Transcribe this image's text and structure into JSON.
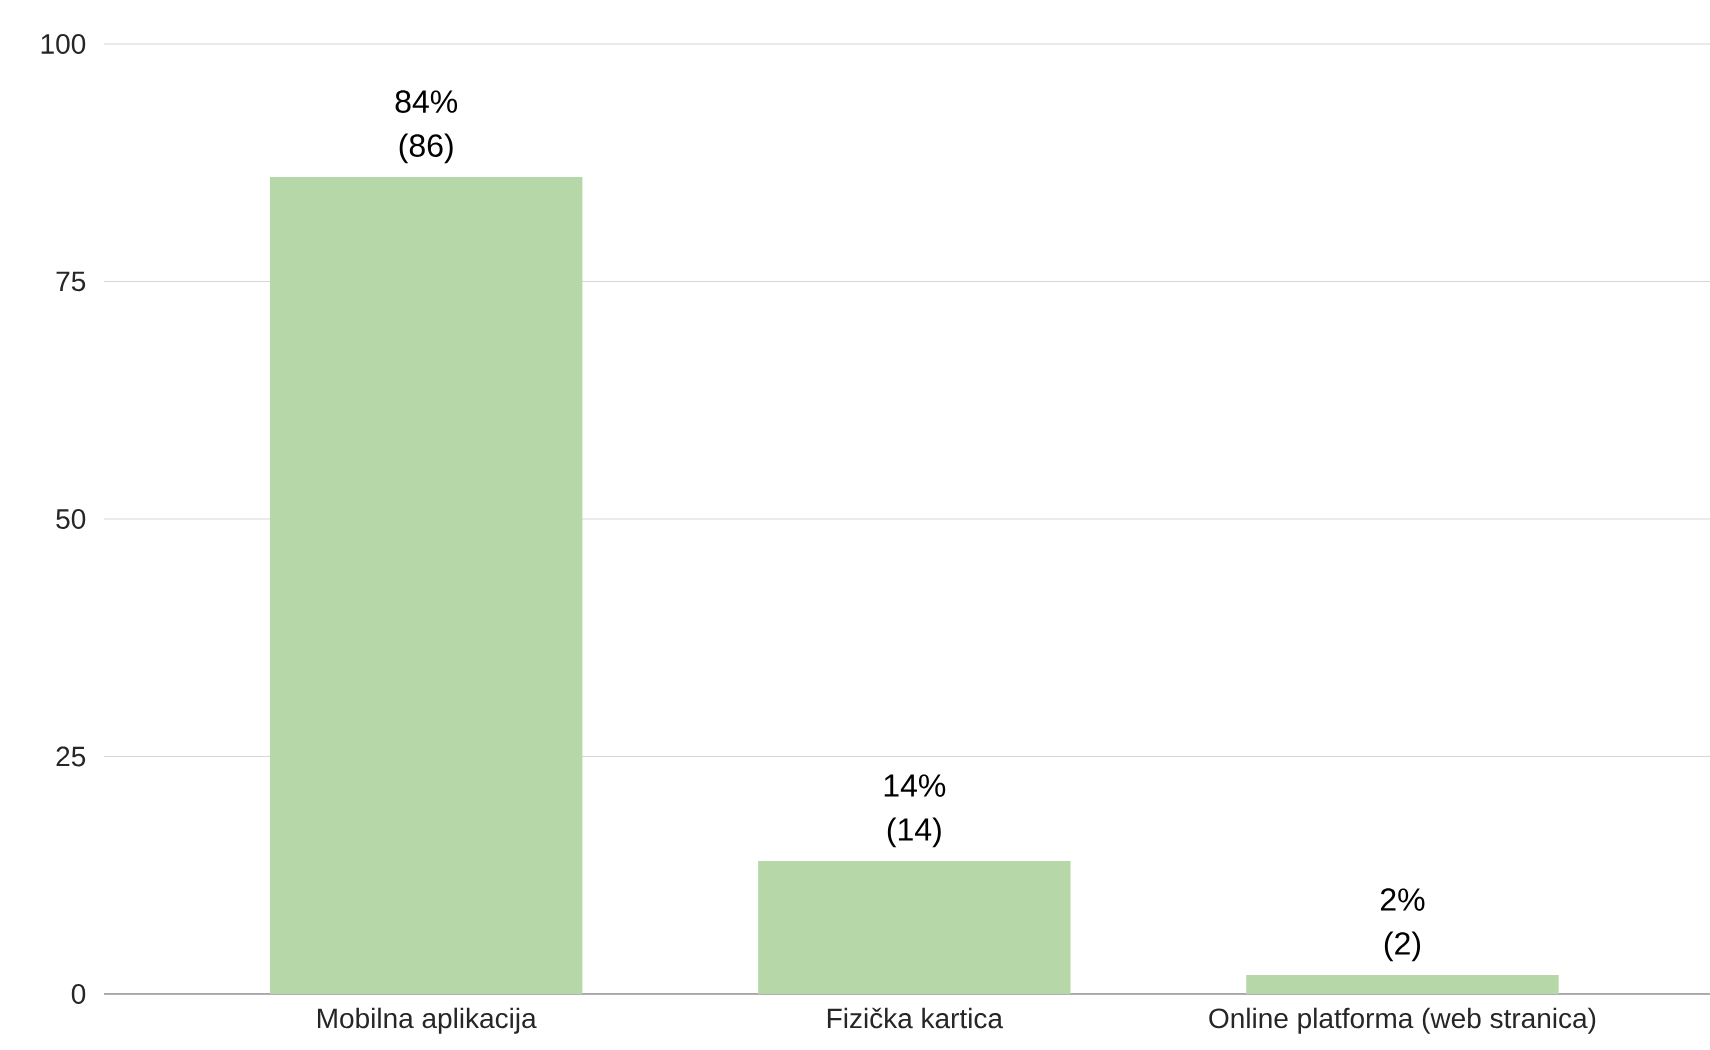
{
  "chart_data": {
    "type": "bar",
    "categories": [
      "Mobilna aplikacija",
      "Fizička kartica",
      "Online platforma (web stranica)"
    ],
    "values": [
      86,
      14,
      2
    ],
    "value_labels": [
      "84% (86)",
      "14% (14)",
      "2% (2)"
    ],
    "color": "#b6d7a8",
    "ylim": [
      0,
      100
    ],
    "yticks": [
      0,
      25,
      50,
      75,
      100
    ],
    "grid": "y"
  }
}
